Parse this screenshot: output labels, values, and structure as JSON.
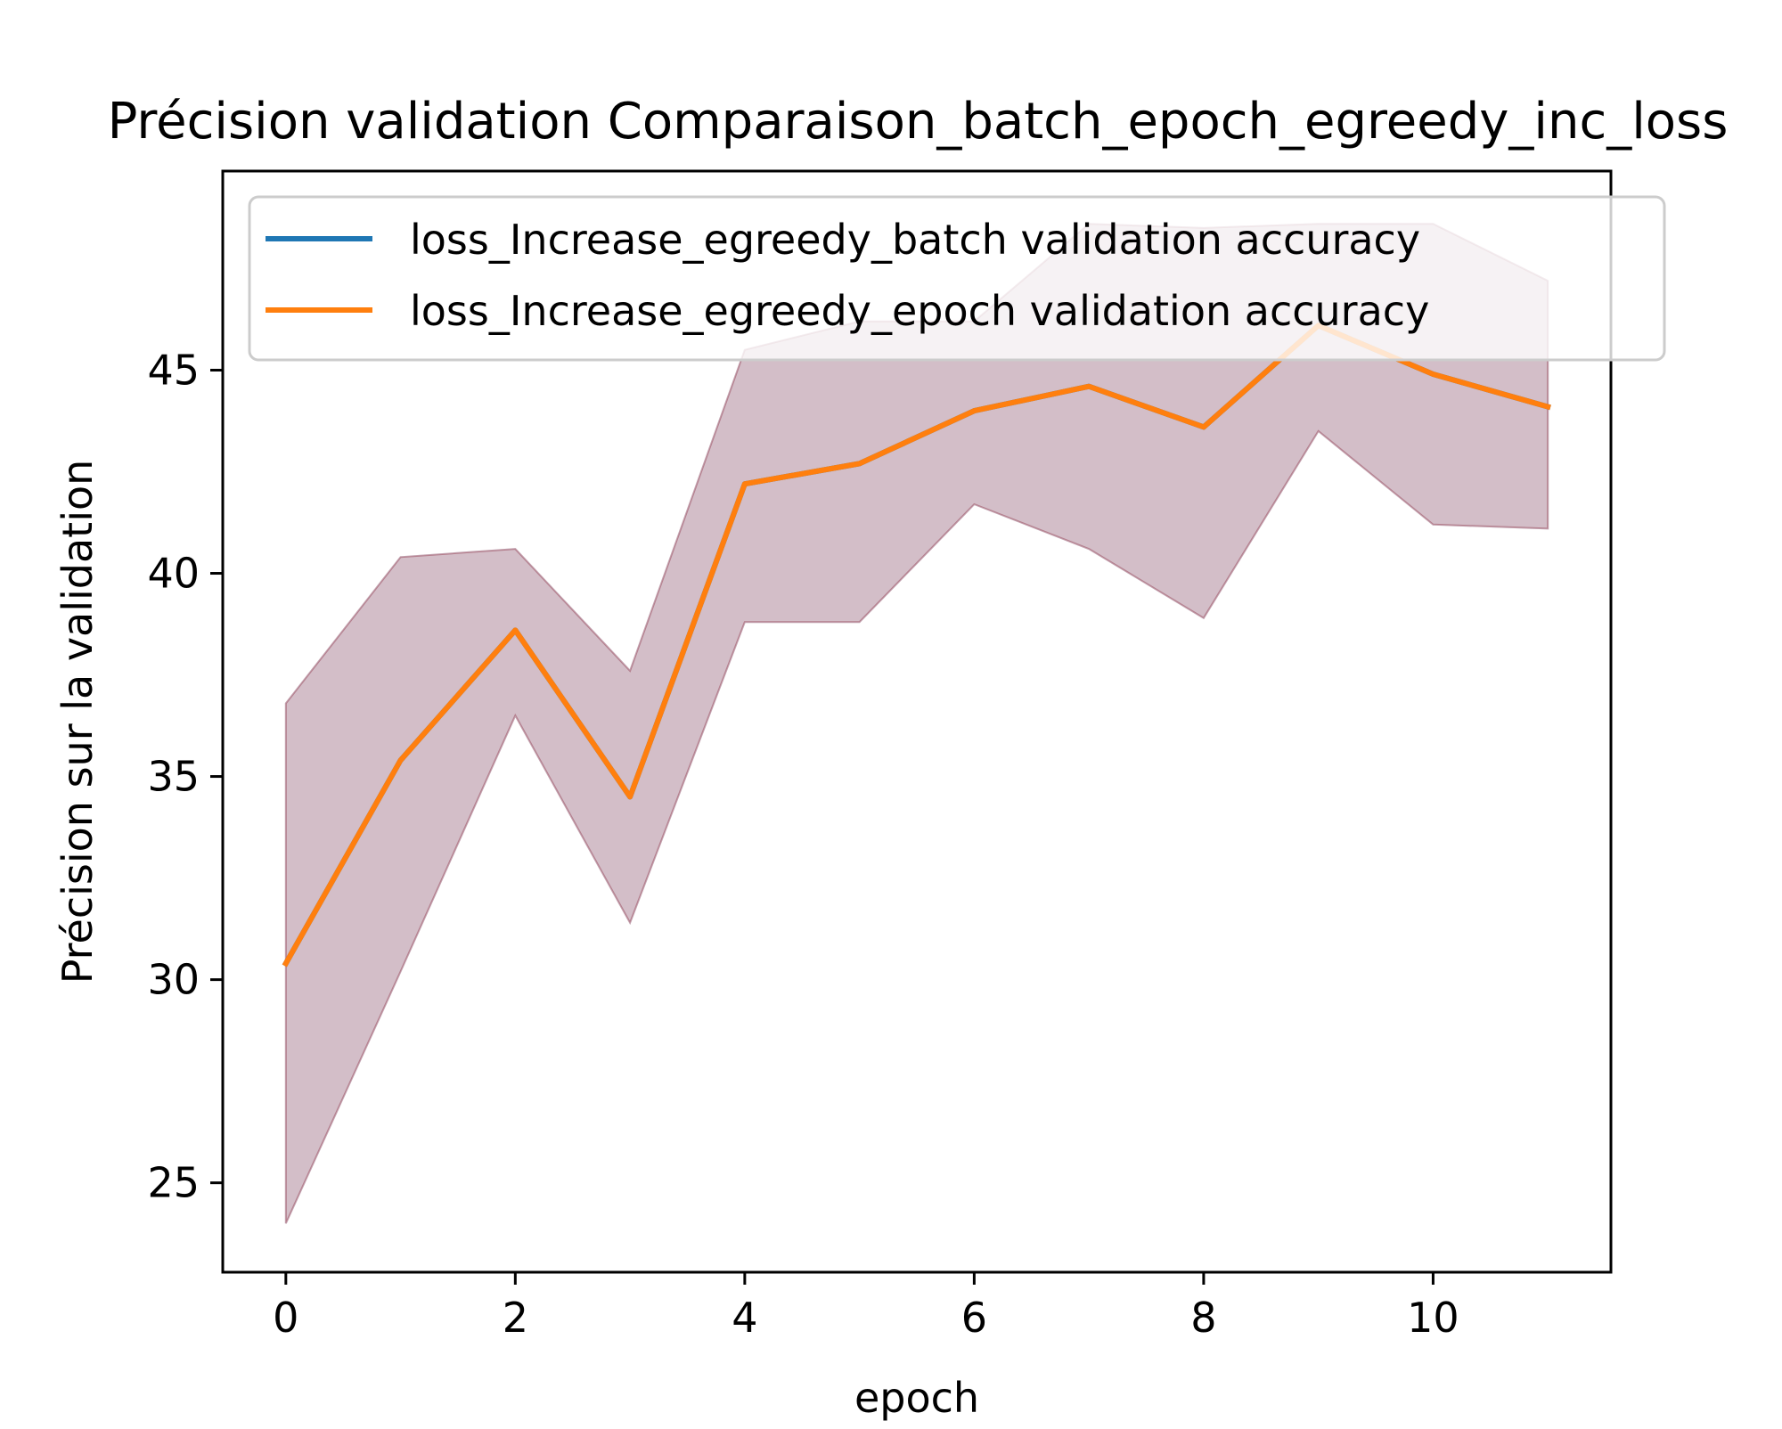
{
  "chart_data": {
    "type": "line",
    "title": "Précision validation Comparaison_batch_epoch_egreedy_inc_loss",
    "xlabel": "epoch",
    "ylabel": "Précision sur la validation",
    "xlim": [
      -0.55,
      11.55
    ],
    "ylim": [
      22.8,
      49.9
    ],
    "x_ticks": [
      0,
      2,
      4,
      6,
      8,
      10
    ],
    "y_ticks": [
      25,
      30,
      35,
      40,
      45
    ],
    "x_tick_labels": [
      "0",
      "2",
      "4",
      "6",
      "8",
      "10"
    ],
    "y_tick_labels": [
      "25",
      "30",
      "35",
      "40",
      "45"
    ],
    "grid": false,
    "legend_position": "upper right",
    "x": [
      0,
      1,
      2,
      3,
      4,
      5,
      6,
      7,
      8,
      9,
      10,
      11
    ],
    "series": [
      {
        "name": "loss_Increase_egreedy_batch validation accuracy",
        "color": "#1f77b4",
        "values": [
          30.4,
          35.4,
          38.6,
          34.5,
          42.2,
          42.7,
          44.0,
          44.6,
          43.6,
          46.1,
          44.9,
          44.1
        ],
        "band_lower": [
          24.0,
          30.2,
          36.5,
          31.4,
          38.8,
          38.8,
          41.7,
          40.6,
          38.9,
          43.5,
          41.2,
          41.1
        ],
        "band_upper": [
          36.8,
          40.4,
          40.6,
          37.6,
          45.5,
          46.2,
          46.2,
          48.6,
          48.5,
          48.6,
          48.6,
          47.2
        ],
        "band_color": "#1f77b4"
      },
      {
        "name": "loss_Increase_egreedy_epoch validation accuracy",
        "color": "#ff7f0e",
        "values": [
          30.4,
          35.4,
          38.6,
          34.5,
          42.2,
          42.7,
          44.0,
          44.6,
          43.6,
          46.1,
          44.9,
          44.1
        ],
        "band_lower": [
          24.0,
          30.2,
          36.5,
          31.4,
          38.8,
          38.8,
          41.7,
          40.6,
          38.9,
          43.5,
          41.2,
          41.1
        ],
        "band_upper": [
          36.8,
          40.4,
          40.6,
          37.6,
          45.5,
          46.2,
          46.2,
          48.6,
          48.5,
          48.6,
          48.6,
          47.2
        ],
        "band_color": "#d62728"
      }
    ]
  }
}
